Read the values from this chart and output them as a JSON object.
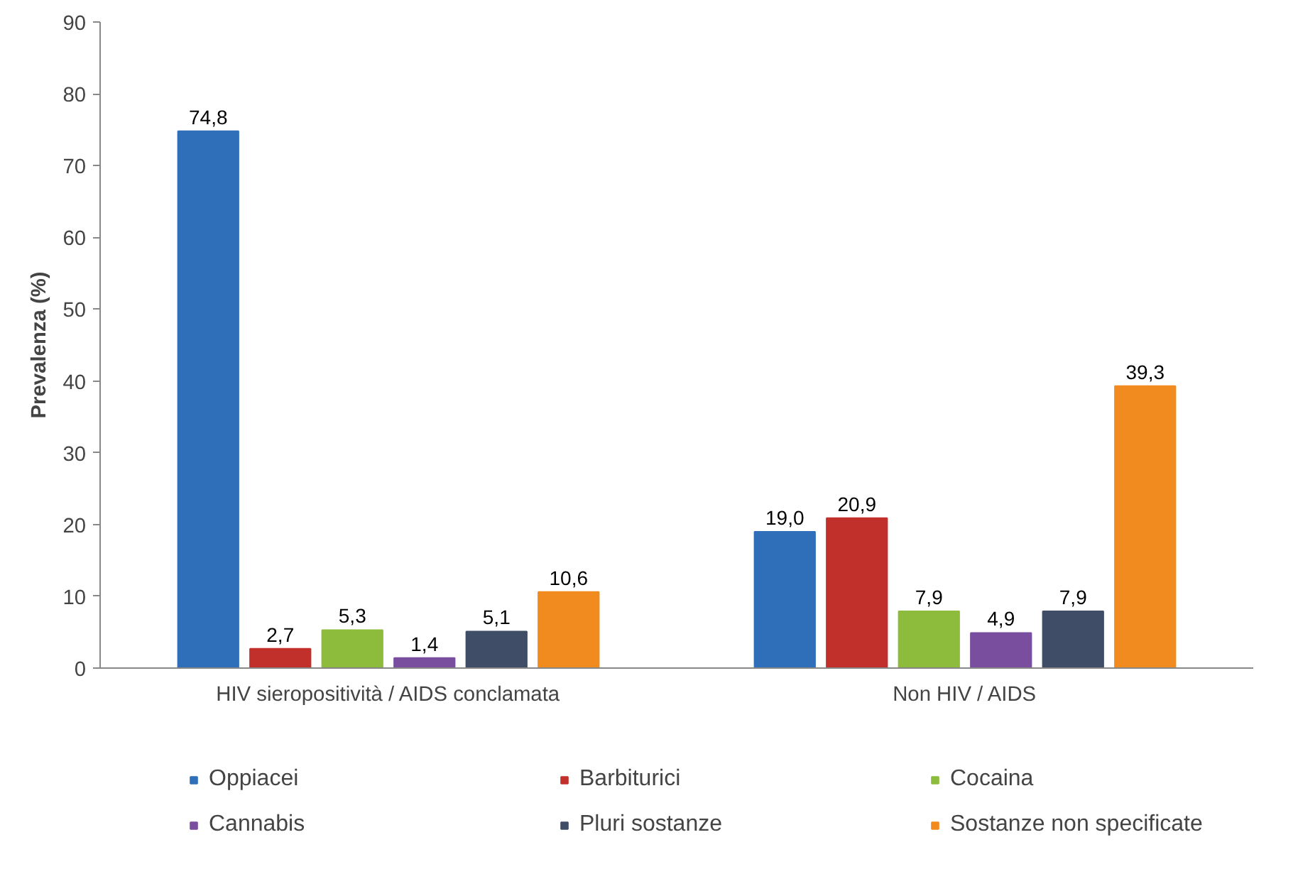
{
  "chart_data": {
    "type": "bar",
    "ylabel": "Prevalenza (%)",
    "categories": [
      "HIV sieropositività / AIDS conclamata",
      "Non HIV / AIDS"
    ],
    "ylim": [
      0,
      90
    ],
    "yticks": [
      0,
      10,
      20,
      30,
      40,
      50,
      60,
      70,
      80,
      90
    ],
    "grid": false,
    "legend": "bottom",
    "series": [
      {
        "name": "Oppiacei",
        "color": "#2f6fba",
        "values": [
          74.8,
          19.0
        ],
        "value_labels": [
          "74,8",
          "19,0"
        ]
      },
      {
        "name": "Barbiturici",
        "color": "#c2302c",
        "values": [
          2.7,
          20.9
        ],
        "value_labels": [
          "2,7",
          "20,9"
        ]
      },
      {
        "name": "Cocaina",
        "color": "#8dbb3b",
        "values": [
          5.3,
          7.9
        ],
        "value_labels": [
          "5,3",
          "7,9"
        ]
      },
      {
        "name": "Cannabis",
        "color": "#7a4e9f",
        "values": [
          1.4,
          4.9
        ],
        "value_labels": [
          "1,4",
          "4,9"
        ]
      },
      {
        "name": "Pluri sostanze",
        "color": "#3f4d66",
        "values": [
          5.1,
          7.9
        ],
        "value_labels": [
          "5,1",
          "7,9"
        ]
      },
      {
        "name": "Sostanze non specificate",
        "color": "#f28b1f",
        "values": [
          10.6,
          39.3
        ],
        "value_labels": [
          "10,6",
          "39,3"
        ]
      }
    ]
  }
}
